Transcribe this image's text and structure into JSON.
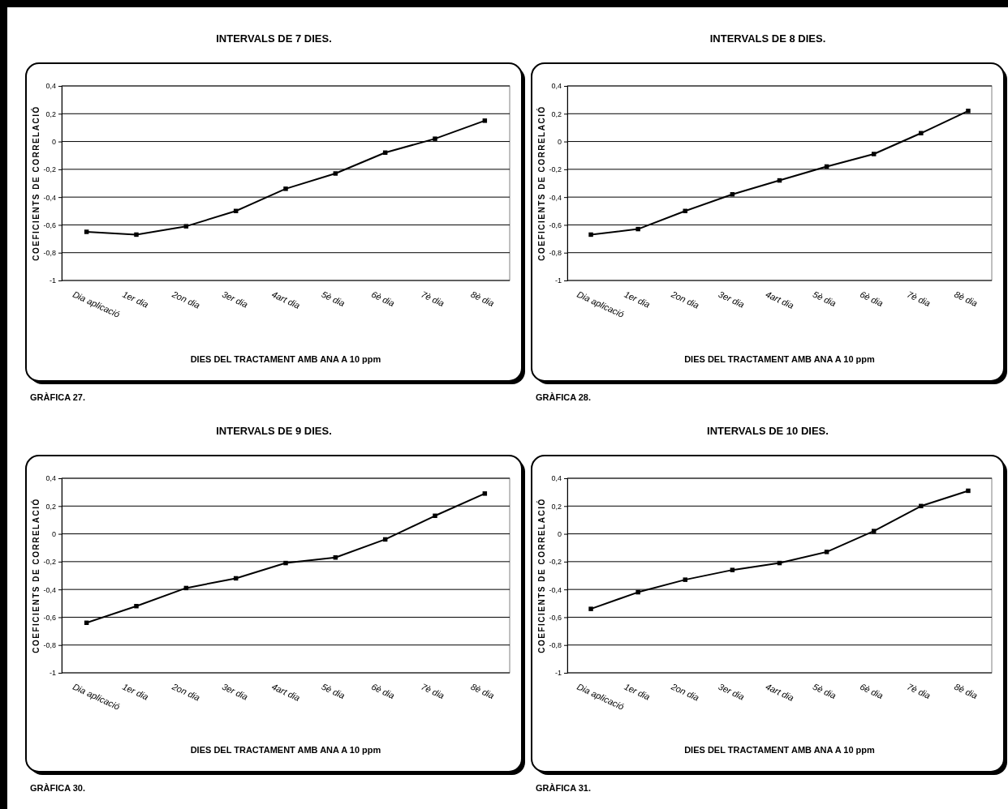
{
  "chart_data": [
    {
      "type": "line",
      "title": "INTERVALS DE 7 DIES.",
      "xlabel": "DIES DEL TRACTAMENT AMB ANA A 10 ppm",
      "ylabel": "COEFICIENTS DE CORRELACIÓ",
      "annotations": [
        "GRÀFICA 27."
      ],
      "categories": [
        "Dia aplicació",
        "1er dia",
        "2on dia",
        "3er dia",
        "4art dia",
        "5è dia",
        "6è dia",
        "7è dia",
        "8è dia"
      ],
      "series": [
        {
          "color": "#000000",
          "values": [
            -0.65,
            -0.67,
            -0.61,
            -0.5,
            -0.34,
            -0.23,
            -0.08,
            0.02,
            0.15
          ]
        }
      ],
      "ylim": [
        -1,
        0.4
      ],
      "yticks": [
        {
          "value": -1,
          "label": "-1"
        },
        {
          "value": -0.8,
          "label": "-0,8"
        },
        {
          "value": -0.6,
          "label": "-0,6"
        },
        {
          "value": -0.4,
          "label": "-0,4"
        },
        {
          "value": -0.2,
          "label": "-0,2"
        },
        {
          "value": 0,
          "label": "0"
        },
        {
          "value": 0.2,
          "label": "0,2"
        },
        {
          "value": 0.4,
          "label": "0,4"
        }
      ],
      "grid": "y",
      "marker": "square",
      "line_style": "solid"
    },
    {
      "type": "line",
      "title": "INTERVALS DE 8 DIES.",
      "xlabel": "DIES DEL TRACTAMENT AMB ANA A 10 ppm",
      "ylabel": "COEFICIENTS DE CORRELACIÓ",
      "annotations": [
        "GRÀFICA 28."
      ],
      "categories": [
        "Dia aplicació",
        "1er dia",
        "2on dia",
        "3er dia",
        "4art dia",
        "5è dia",
        "6è dia",
        "7è dia",
        "8è dia"
      ],
      "series": [
        {
          "color": "#000000",
          "values": [
            -0.67,
            -0.63,
            -0.5,
            -0.38,
            -0.28,
            -0.18,
            -0.09,
            0.06,
            0.22
          ]
        }
      ],
      "ylim": [
        -1,
        0.4
      ],
      "yticks": [
        {
          "value": -1,
          "label": "-1"
        },
        {
          "value": -0.8,
          "label": "-0,8"
        },
        {
          "value": -0.6,
          "label": "-0,6"
        },
        {
          "value": -0.4,
          "label": "-0,4"
        },
        {
          "value": -0.2,
          "label": "-0,2"
        },
        {
          "value": 0,
          "label": "0"
        },
        {
          "value": 0.2,
          "label": "0,2"
        },
        {
          "value": 0.4,
          "label": "0,4"
        }
      ],
      "grid": "y",
      "marker": "square",
      "line_style": "solid"
    },
    {
      "type": "line",
      "title": "INTERVALS DE 9 DIES.",
      "xlabel": "DIES DEL TRACTAMENT AMB ANA A 10 ppm",
      "ylabel": "COEFICIENTS DE CORRELACIÓ",
      "annotations": [
        "GRÀFICA 30."
      ],
      "categories": [
        "Dia aplicació",
        "1er dia",
        "2on dia",
        "3er dia",
        "4art dia",
        "5è dia",
        "6è dia",
        "7è dia",
        "8è dia"
      ],
      "series": [
        {
          "color": "#000000",
          "values": [
            -0.64,
            -0.52,
            -0.39,
            -0.32,
            -0.21,
            -0.17,
            -0.04,
            0.13,
            0.29
          ]
        }
      ],
      "ylim": [
        -1,
        0.4
      ],
      "yticks": [
        {
          "value": -1,
          "label": "-1"
        },
        {
          "value": -0.8,
          "label": "-0,8"
        },
        {
          "value": -0.6,
          "label": "-0,6"
        },
        {
          "value": -0.4,
          "label": "-0,4"
        },
        {
          "value": -0.2,
          "label": "-0,2"
        },
        {
          "value": 0,
          "label": "0"
        },
        {
          "value": 0.2,
          "label": "0,2"
        },
        {
          "value": 0.4,
          "label": "0,4"
        }
      ],
      "grid": "y",
      "marker": "square",
      "line_style": "solid"
    },
    {
      "type": "line",
      "title": "INTERVALS DE 10 DIES.",
      "xlabel": "DIES DEL TRACTAMENT AMB ANA A 10 ppm",
      "ylabel": "COEFICIENTS DE CORRELACIÓ",
      "annotations": [
        "GRÀFICA 31."
      ],
      "categories": [
        "Dia aplicació",
        "1er dia",
        "2on dia",
        "3er dia",
        "4art dia",
        "5è dia",
        "6è dia",
        "7è dia",
        "8è dia"
      ],
      "series": [
        {
          "color": "#000000",
          "values": [
            -0.54,
            -0.42,
            -0.33,
            -0.26,
            -0.21,
            -0.13,
            0.02,
            0.2,
            0.31
          ]
        }
      ],
      "ylim": [
        -1,
        0.4
      ],
      "yticks": [
        {
          "value": -1,
          "label": "-1"
        },
        {
          "value": -0.8,
          "label": "-0,8"
        },
        {
          "value": -0.6,
          "label": "-0,6"
        },
        {
          "value": -0.4,
          "label": "-0,4"
        },
        {
          "value": -0.2,
          "label": "-0,2"
        },
        {
          "value": 0,
          "label": "0"
        },
        {
          "value": 0.2,
          "label": "0,2"
        },
        {
          "value": 0.4,
          "label": "0,4"
        }
      ],
      "grid": "y",
      "marker": "square",
      "line_style": "solid"
    }
  ]
}
